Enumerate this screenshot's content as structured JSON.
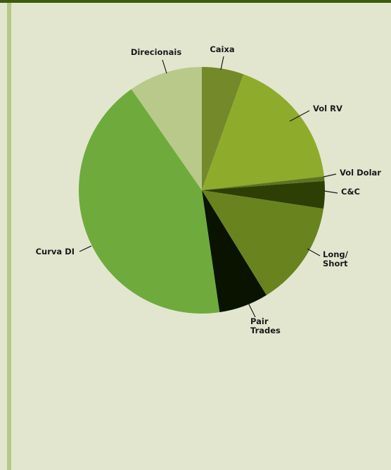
{
  "chart_data": {
    "type": "pie",
    "title": "",
    "slices": [
      {
        "label": "Caixa",
        "value": 5.5,
        "color": "#74892a"
      },
      {
        "label": "Vol RV",
        "value": 17.7,
        "color": "#8fab2c"
      },
      {
        "label": "Vol Dolar",
        "value": 0.6,
        "color": "#5c7420"
      },
      {
        "label": "C&C",
        "value": 3.6,
        "color": "#2d3f05"
      },
      {
        "label": "Long/\nShort",
        "value": 13.8,
        "color": "#69831f"
      },
      {
        "label": "Pair\nTrades",
        "value": 6.5,
        "color": "#091300"
      },
      {
        "label": "Curva DI",
        "value": 42.6,
        "color": "#6eab3c"
      },
      {
        "label": "Direcionais",
        "value": 9.7,
        "color": "#b8c98a"
      }
    ],
    "legend": "none",
    "label_style": "outside-with-leader-lines"
  },
  "colors": {
    "background": "#e2e6cf",
    "top_bar": "#3d5a10",
    "side_rail": "#b5c98a"
  }
}
